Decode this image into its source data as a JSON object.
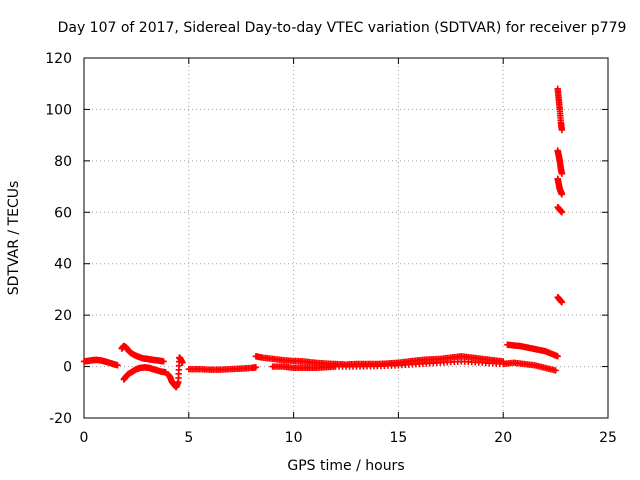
{
  "chart_data": {
    "type": "scatter",
    "title": "Day 107 of 2017, Sidereal Day-to-day VTEC variation (SDTVAR) for receiver p779",
    "xlabel": "GPS time / hours",
    "ylabel": "SDTVAR / TECUs",
    "xlim": [
      0,
      25
    ],
    "ylim": [
      -20,
      120
    ],
    "xticks": [
      0,
      5,
      10,
      15,
      20,
      25
    ],
    "yticks": [
      -20,
      0,
      20,
      40,
      60,
      80,
      100,
      120
    ],
    "xtick_labels": [
      "0",
      "5",
      "10",
      "15",
      "20",
      "25"
    ],
    "ytick_labels": [
      "-20",
      "0",
      "20",
      "40",
      "60",
      "80",
      "100",
      "120"
    ],
    "grid": true,
    "marker": "+",
    "color": "#ff0000",
    "series": [
      {
        "name": "seg-0-1",
        "x": [
          0.0,
          0.2,
          0.4,
          0.6,
          0.8,
          1.0,
          1.2,
          1.4,
          1.6
        ],
        "y": [
          2,
          2.2,
          2.5,
          2.6,
          2.4,
          2,
          1.5,
          1,
          0.5
        ]
      },
      {
        "name": "seg-2-upper",
        "x": [
          1.8,
          1.9,
          2.0,
          2.1,
          2.2,
          2.4,
          2.6,
          2.8,
          3.0,
          3.2,
          3.4,
          3.6,
          3.8
        ],
        "y": [
          7,
          8,
          7.5,
          6.5,
          5.5,
          4.5,
          3.8,
          3.2,
          3,
          2.7,
          2.5,
          2.3,
          2
        ]
      },
      {
        "name": "seg-2-lower",
        "x": [
          1.9,
          2.0,
          2.1,
          2.3,
          2.5,
          2.7,
          2.9,
          3.1,
          3.3,
          3.5,
          3.7,
          3.9
        ],
        "y": [
          -5,
          -4,
          -3,
          -2,
          -1,
          -0.5,
          -0.3,
          -0.5,
          -1,
          -1.5,
          -2,
          -2.2
        ]
      },
      {
        "name": "seg-4",
        "x": [
          4.0,
          4.1,
          4.2,
          4.3,
          4.4,
          4.5,
          4.55,
          4.6,
          4.7
        ],
        "y": [
          -3,
          -4,
          -6,
          -7,
          -8,
          -6,
          3.5,
          3,
          1.5
        ]
      },
      {
        "name": "seg-5-8",
        "x": [
          5.0,
          5.5,
          6.0,
          6.5,
          7.0,
          7.5,
          8.0,
          8.2
        ],
        "y": [
          -1,
          -1,
          -1.2,
          -1.2,
          -1,
          -0.8,
          -0.5,
          -0.3
        ]
      },
      {
        "name": "seg-8-20",
        "x": [
          8.2,
          8.5,
          9.0,
          9.5,
          10.0,
          10.5,
          11.0,
          11.5,
          12.0,
          12.5,
          13.0,
          13.5,
          14.0,
          14.5,
          15.0,
          15.5,
          16.0,
          16.5,
          17.0,
          17.5,
          18.0,
          18.5,
          19.0,
          19.5,
          20.0
        ],
        "y": [
          4,
          3.5,
          3,
          2.5,
          2.2,
          2,
          1.5,
          1.2,
          1,
          0.8,
          1,
          1,
          1,
          1.2,
          1.5,
          2,
          2.5,
          2.8,
          3,
          3.5,
          4,
          3.5,
          3,
          2.5,
          2
        ]
      },
      {
        "name": "seg-8-20-lower",
        "x": [
          9.0,
          9.5,
          10.0,
          10.5,
          11.0,
          11.5,
          12.0,
          13.0,
          14.0,
          15.0,
          16.0,
          17.0,
          18.0,
          19.0,
          20.0,
          20.5,
          21.0,
          21.5,
          22.0,
          22.5
        ],
        "y": [
          0,
          0,
          -0.5,
          -0.5,
          -0.5,
          -0.3,
          0,
          0,
          0.2,
          0.5,
          1,
          1.5,
          2,
          1.5,
          1,
          1.5,
          1,
          0.5,
          -0.5,
          -1.5
        ]
      },
      {
        "name": "seg-20-23",
        "x": [
          20.2,
          20.5,
          20.8,
          21.1,
          21.4,
          21.7,
          22.0,
          22.3,
          22.6
        ],
        "y": [
          8.5,
          8.2,
          8,
          7.5,
          7,
          6.5,
          6,
          5,
          4
        ]
      },
      {
        "name": "seg-22-8-top",
        "x": [
          22.6,
          22.65,
          22.7,
          22.75,
          22.8
        ],
        "y": [
          108,
          104,
          100,
          95,
          92
        ]
      },
      {
        "name": "seg-22-8-mid",
        "x": [
          22.6,
          22.65,
          22.7,
          22.75,
          22.8
        ],
        "y": [
          84,
          82,
          80,
          77,
          75
        ]
      },
      {
        "name": "seg-22-8-low",
        "x": [
          22.6,
          22.65,
          22.7,
          22.75,
          22.8
        ],
        "y": [
          73,
          71,
          69,
          68,
          67
        ]
      },
      {
        "name": "seg-22-8-60",
        "x": [
          22.6,
          22.7,
          22.8
        ],
        "y": [
          62,
          61,
          60
        ]
      },
      {
        "name": "seg-22-8-25",
        "x": [
          22.6,
          22.7,
          22.8
        ],
        "y": [
          27,
          26,
          25
        ]
      }
    ]
  }
}
